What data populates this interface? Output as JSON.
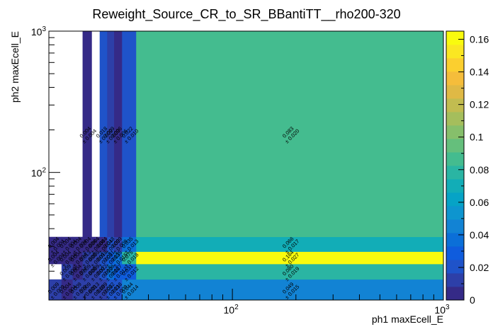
{
  "chart_data": {
    "type": "heatmap",
    "title": "Reweight_Source_CR_to_SR_BBantiTT__rho200-320",
    "xlabel": "ph1 maxEcell_E",
    "ylabel": "ph2 maxEcell_E",
    "x_scale": "log",
    "y_scale": "log",
    "xlim": [
      13.5,
      1000
    ],
    "ylim": [
      12.5,
      1000
    ],
    "x_tick_labels": [
      "10^2",
      "10^3"
    ],
    "y_tick_labels": [
      "10^2",
      "10^3"
    ],
    "z_range": [
      0,
      0.165
    ],
    "z_ticks": [
      "0",
      "0.02",
      "0.04",
      "0.06",
      "0.08",
      "0.1",
      "0.12",
      "0.14",
      "0.16"
    ],
    "x_edges": [
      13.5,
      15.5,
      17.5,
      19.5,
      21.5,
      23.5,
      25.5,
      27.5,
      30,
      35,
      1000
    ],
    "y_edges": [
      12.5,
      17.5,
      22.5,
      27.5,
      35,
      1000
    ],
    "cells": [
      {
        "ix": 0,
        "iy": 0,
        "value": 0.009,
        "text": "0.009",
        "err": "± 0.009"
      },
      {
        "ix": 1,
        "iy": 0,
        "value": 0.004,
        "text": "0.004",
        "err": "± 0.004"
      },
      {
        "ix": 2,
        "iy": 0,
        "value": 0.009,
        "text": "0.009",
        "err": "± 0.009"
      },
      {
        "ix": 3,
        "iy": 0,
        "value": 0.009,
        "text": "0.009",
        "err": "± 0.009"
      },
      {
        "ix": 4,
        "iy": 0,
        "value": 0.013,
        "text": "0.013",
        "err": "± 0.013"
      },
      {
        "ix": 5,
        "iy": 0,
        "value": 0.009,
        "text": "0.009",
        "err": "± 0.009"
      },
      {
        "ix": 6,
        "iy": 0,
        "value": 0.022,
        "text": "0.022",
        "err": "± 0.013"
      },
      {
        "ix": 7,
        "iy": 0,
        "value": 0.018,
        "text": "0.018",
        "err": "± 0.009"
      },
      {
        "ix": 8,
        "iy": 0,
        "value": 0.044,
        "text": "0.044",
        "err": "± 0.014"
      },
      {
        "ix": 9,
        "iy": 0,
        "value": 0.049,
        "text": "0.049",
        "err": "± 0.015"
      },
      {
        "ix": 0,
        "iy": 1,
        "value": 0,
        "text": "",
        "err": ""
      },
      {
        "ix": 1,
        "iy": 1,
        "value": 0.009,
        "text": "0.009",
        "err": "± 0.009"
      },
      {
        "ix": 2,
        "iy": 1,
        "value": 0.004,
        "text": "0.004",
        "err": "± 0.004"
      },
      {
        "ix": 3,
        "iy": 1,
        "value": 0.009,
        "text": "0.009",
        "err": "± 0.009"
      },
      {
        "ix": 4,
        "iy": 1,
        "value": 0.009,
        "text": "0.009",
        "err": "± 0.009"
      },
      {
        "ix": 5,
        "iy": 1,
        "value": 0.022,
        "text": "0.022",
        "err": "± 0.010"
      },
      {
        "ix": 6,
        "iy": 1,
        "value": 0.036,
        "text": "0.036",
        "err": "± 0.018"
      },
      {
        "ix": 7,
        "iy": 1,
        "value": 0.027,
        "text": "0.027",
        "err": "± 0.012"
      },
      {
        "ix": 8,
        "iy": 1,
        "value": 0.031,
        "text": "0.031",
        "err": "± 0.012"
      },
      {
        "ix": 9,
        "iy": 1,
        "value": 0.08,
        "text": "0.080",
        "err": "± 0.019"
      },
      {
        "ix": 0,
        "iy": 2,
        "value": 0.004,
        "text": "0.004",
        "err": "± 0.004"
      },
      {
        "ix": 1,
        "iy": 2,
        "value": 0.004,
        "text": "0.004",
        "err": "± 0.004"
      },
      {
        "ix": 2,
        "iy": 2,
        "value": 0.004,
        "text": "0.004",
        "err": "± 0.004"
      },
      {
        "ix": 3,
        "iy": 2,
        "value": 0.013,
        "text": "0.013",
        "err": "± 0.009"
      },
      {
        "ix": 4,
        "iy": 2,
        "value": 0.009,
        "text": "0.009",
        "err": "± 0.009"
      },
      {
        "ix": 5,
        "iy": 2,
        "value": 0.018,
        "text": "0.018",
        "err": "± 0.009"
      },
      {
        "ix": 6,
        "iy": 2,
        "value": 0.031,
        "text": "0.031",
        "err": "± 0.013"
      },
      {
        "ix": 7,
        "iy": 2,
        "value": 0.035,
        "text": "0.035",
        "err": "± 0.015"
      },
      {
        "ix": 8,
        "iy": 2,
        "value": 0.075,
        "text": "0.075",
        "err": "± 0.018"
      },
      {
        "ix": 9,
        "iy": 2,
        "value": 0.164,
        "text": "0.164",
        "err": "± 0.027"
      },
      {
        "ix": 0,
        "iy": 3,
        "value": 0.004,
        "text": "0.004",
        "err": "± 0.004"
      },
      {
        "ix": 1,
        "iy": 3,
        "value": 0.004,
        "text": "0.004",
        "err": "± 0.004"
      },
      {
        "ix": 2,
        "iy": 3,
        "value": 0.004,
        "text": "0.004",
        "err": "± 0.004"
      },
      {
        "ix": 3,
        "iy": 3,
        "value": 0.004,
        "text": "0.004",
        "err": "± 0.004"
      },
      {
        "ix": 4,
        "iy": 3,
        "value": 0.004,
        "text": "0.004",
        "err": "± 0.004"
      },
      {
        "ix": 5,
        "iy": 3,
        "value": 0.004,
        "text": "0.004",
        "err": "± 0.004"
      },
      {
        "ix": 6,
        "iy": 3,
        "value": 0.018,
        "text": "0.018",
        "err": "± 0.009"
      },
      {
        "ix": 7,
        "iy": 3,
        "value": 0.009,
        "text": "0.009",
        "err": "± 0.009"
      },
      {
        "ix": 8,
        "iy": 3,
        "value": 0.035,
        "text": "0.035",
        "err": "± 0.013"
      },
      {
        "ix": 9,
        "iy": 3,
        "value": 0.066,
        "text": "0.066",
        "err": "± 0.017"
      },
      {
        "ix": 0,
        "iy": 4,
        "value": 0,
        "text": "",
        "err": ""
      },
      {
        "ix": 1,
        "iy": 4,
        "value": 0,
        "text": "",
        "err": ""
      },
      {
        "ix": 2,
        "iy": 4,
        "value": 0,
        "text": "",
        "err": ""
      },
      {
        "ix": 3,
        "iy": 4,
        "value": 0.004,
        "text": "0.004",
        "err": "± 0.004"
      },
      {
        "ix": 4,
        "iy": 4,
        "value": 0,
        "text": "",
        "err": ""
      },
      {
        "ix": 5,
        "iy": 4,
        "value": 0.018,
        "text": "0.018",
        "err": "± 0.009"
      },
      {
        "ix": 6,
        "iy": 4,
        "value": 0.009,
        "text": "0.009",
        "err": "± 0.009"
      },
      {
        "ix": 7,
        "iy": 4,
        "value": 0.006,
        "text": "0.006",
        "err": "± 0.006"
      },
      {
        "ix": 8,
        "iy": 4,
        "value": 0.022,
        "text": "0.022",
        "err": "± 0.010"
      },
      {
        "ix": 9,
        "iy": 4,
        "value": 0.083,
        "text": "0.083",
        "err": "± 0.020"
      }
    ],
    "palette": [
      "#352a87",
      "#2d3fa8",
      "#1f53c9",
      "#0f5cdd",
      "#0b6fd8",
      "#1283d4",
      "#0e95cf",
      "#06a3c6",
      "#12adb7",
      "#2ab5a3",
      "#44bc8f",
      "#65bf7c",
      "#86bf6b",
      "#a5be5c",
      "#c2bc50",
      "#dfb945",
      "#f5bd3b",
      "#fbcf2f",
      "#fae722",
      "#f9fb0e"
    ],
    "grid": false,
    "legend": "color bar right"
  }
}
